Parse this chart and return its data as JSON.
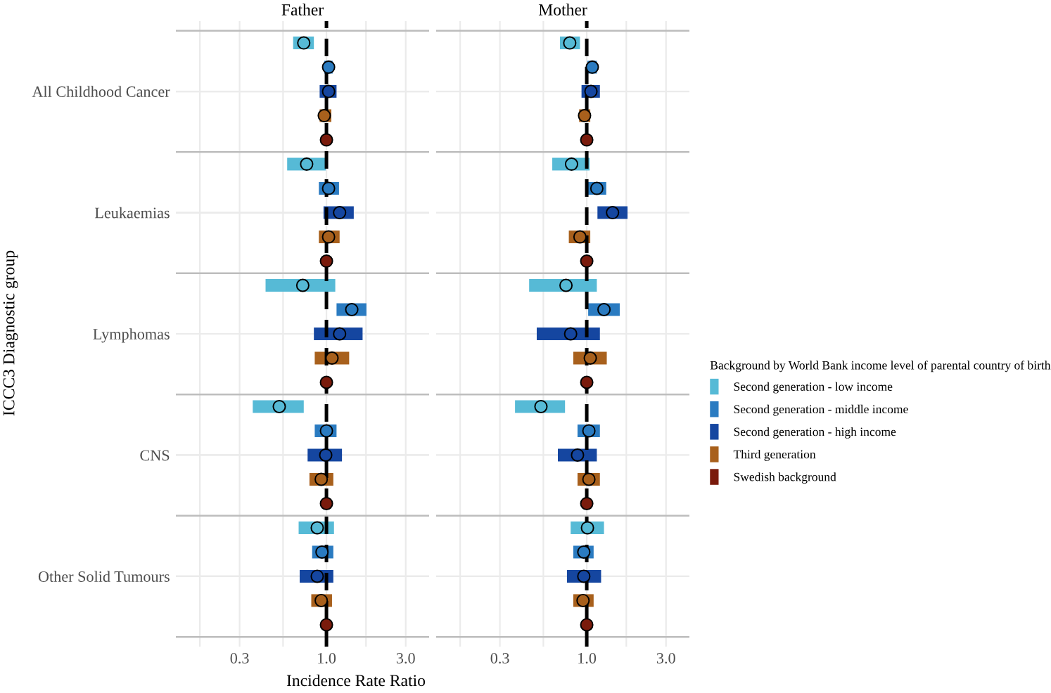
{
  "chart_data": [
    {
      "type": "scatter",
      "orientation": "horizontal",
      "title": "Father",
      "xlabel": "Incidence Rate Ratio",
      "ylabel": "ICCC3 Diagnostic group",
      "categories": [
        null,
        null,
        "All Childhood Cancer",
        null,
        null,
        null,
        null,
        "Leukaemias",
        null,
        null,
        null,
        null,
        "Lymphomas",
        null,
        null,
        null,
        null,
        "CNS",
        null,
        null,
        null,
        null,
        "Other Solid Tumours",
        null,
        null
      ],
      "log": "x",
      "xlim": [
        0.124,
        4.15
      ],
      "xticks": [
        {
          "value": 0.173,
          "label": null
        },
        0.3,
        {
          "value": 0.548,
          "label": null
        },
        {
          "value": 1,
          "label": "1.0"
        },
        {
          "value": 1.73,
          "label": null
        },
        {
          "value": 3,
          "label": "3.0"
        }
      ],
      "grid": true,
      "marker": "circle",
      "legend": "right",
      "legend_title": "Background by World Bank income level of parental country of birth",
      "ref_lines": [
        {
          "axis": "x",
          "value": 1,
          "color": "#000000",
          "line_style": "dashed"
        }
      ],
      "series": [
        {
          "name": "Second generation - low income",
          "color": "#56bad6",
          "values": [
            0.73,
            null,
            null,
            null,
            null,
            0.76,
            null,
            null,
            null,
            null,
            0.72,
            null,
            null,
            null,
            null,
            0.52,
            null,
            null,
            null,
            null,
            0.88,
            null,
            null,
            null,
            null
          ],
          "errors": [
            [
              0.63,
              0.84
            ],
            null,
            null,
            null,
            null,
            [
              0.58,
              0.99
            ],
            null,
            null,
            null,
            null,
            [
              0.43,
              1.13
            ],
            null,
            null,
            null,
            null,
            [
              0.36,
              0.73
            ],
            null,
            null,
            null,
            null,
            [
              0.68,
              1.11
            ],
            null,
            null,
            null,
            null
          ]
        },
        {
          "name": "Second generation - middle income",
          "color": "#2a7bc1",
          "values": [
            null,
            1.03,
            null,
            null,
            null,
            null,
            1.03,
            null,
            null,
            null,
            null,
            1.42,
            null,
            null,
            null,
            null,
            1.0,
            null,
            null,
            null,
            null,
            0.94,
            null,
            null,
            null
          ],
          "errors": [
            null,
            [
              0.97,
              1.09
            ],
            null,
            null,
            null,
            null,
            [
              0.9,
              1.19
            ],
            null,
            null,
            null,
            null,
            [
              1.15,
              1.74
            ],
            null,
            null,
            null,
            null,
            [
              0.85,
              1.15
            ],
            null,
            null,
            null,
            null,
            [
              0.82,
              1.1
            ],
            null,
            null,
            null
          ]
        },
        {
          "name": "Second generation - high income",
          "color": "#1546a0",
          "values": [
            null,
            null,
            1.03,
            null,
            null,
            null,
            null,
            1.2,
            null,
            null,
            null,
            null,
            1.2,
            null,
            null,
            null,
            null,
            0.99,
            null,
            null,
            null,
            null,
            0.88,
            null,
            null
          ],
          "errors": [
            null,
            null,
            [
              0.91,
              1.15
            ],
            null,
            null,
            null,
            null,
            [
              0.96,
              1.46
            ],
            null,
            null,
            null,
            null,
            [
              0.84,
              1.65
            ],
            null,
            null,
            null,
            null,
            [
              0.77,
              1.24
            ],
            null,
            null,
            null,
            null,
            [
              0.69,
              1.1
            ],
            null,
            null
          ]
        },
        {
          "name": "Third generation",
          "color": "#a8601c",
          "values": [
            null,
            null,
            null,
            0.97,
            null,
            null,
            null,
            null,
            1.03,
            null,
            null,
            null,
            null,
            1.08,
            null,
            null,
            null,
            null,
            0.93,
            null,
            null,
            null,
            null,
            0.93,
            null
          ],
          "errors": [
            null,
            null,
            null,
            [
              0.91,
              1.07
            ],
            null,
            null,
            null,
            null,
            [
              0.9,
              1.2
            ],
            null,
            null,
            null,
            null,
            [
              0.85,
              1.37
            ],
            null,
            null,
            null,
            null,
            [
              0.79,
              1.1
            ],
            null,
            null,
            null,
            null,
            [
              0.81,
              1.08
            ],
            null
          ]
        },
        {
          "name": "Swedish background",
          "color": "#7a1b0c",
          "values": [
            null,
            null,
            null,
            null,
            1,
            null,
            null,
            null,
            null,
            1,
            null,
            null,
            null,
            null,
            1,
            null,
            null,
            null,
            null,
            1,
            null,
            null,
            null,
            null,
            1
          ]
        }
      ]
    },
    {
      "type": "scatter",
      "orientation": "horizontal",
      "title": "Mother",
      "tick_labels": "x",
      "categories": [
        null,
        null,
        null,
        null,
        null,
        null,
        null,
        null,
        null,
        null,
        null,
        null,
        null,
        null,
        null,
        null,
        null,
        null,
        null,
        null,
        null,
        null,
        null,
        null,
        null
      ],
      "log": "x",
      "xlim": [
        0.124,
        4.15
      ],
      "xticks": [
        {
          "value": 0.173,
          "label": null
        },
        0.3,
        {
          "value": 0.548,
          "label": null
        },
        {
          "value": 1,
          "label": "1.0"
        },
        {
          "value": 1.73,
          "label": null
        },
        {
          "value": 3,
          "label": "3.0"
        }
      ],
      "grid": true,
      "marker": "circle",
      "ref_lines": [
        {
          "axis": "x",
          "value": 1,
          "color": "#000000",
          "line_style": "dashed"
        }
      ],
      "series": [
        {
          "color": "#56bad6",
          "values": [
            0.79,
            null,
            null,
            null,
            null,
            0.81,
            null,
            null,
            null,
            null,
            0.75,
            null,
            null,
            null,
            null,
            0.53,
            null,
            null,
            null,
            null,
            1.01,
            null,
            null,
            null,
            null
          ],
          "errors": [
            [
              0.69,
              0.91
            ],
            null,
            null,
            null,
            null,
            [
              0.62,
              1.04
            ],
            null,
            null,
            null,
            null,
            [
              0.45,
              1.15
            ],
            null,
            null,
            null,
            null,
            [
              0.37,
              0.74
            ],
            null,
            null,
            null,
            null,
            [
              0.8,
              1.27
            ],
            null,
            null,
            null,
            null
          ]
        },
        {
          "color": "#2a7bc1",
          "values": [
            null,
            1.08,
            null,
            null,
            null,
            null,
            1.15,
            null,
            null,
            null,
            null,
            1.27,
            null,
            null,
            null,
            null,
            1.03,
            null,
            null,
            null,
            null,
            0.96,
            null,
            null,
            null
          ],
          "errors": [
            null,
            [
              1.01,
              1.15
            ],
            null,
            null,
            null,
            null,
            [
              1.0,
              1.31
            ],
            null,
            null,
            null,
            null,
            [
              1.02,
              1.58
            ],
            null,
            null,
            null,
            null,
            [
              0.88,
              1.2
            ],
            null,
            null,
            null,
            null,
            [
              0.83,
              1.1
            ],
            null,
            null,
            null
          ]
        },
        {
          "color": "#1546a0",
          "values": [
            null,
            null,
            1.06,
            null,
            null,
            null,
            null,
            1.43,
            null,
            null,
            null,
            null,
            0.8,
            null,
            null,
            null,
            null,
            0.88,
            null,
            null,
            null,
            null,
            0.96,
            null,
            null
          ],
          "errors": [
            null,
            null,
            [
              0.93,
              1.2
            ],
            null,
            null,
            null,
            null,
            [
              1.16,
              1.76
            ],
            null,
            null,
            null,
            null,
            [
              0.5,
              1.2
            ],
            null,
            null,
            null,
            null,
            [
              0.67,
              1.15
            ],
            null,
            null,
            null,
            null,
            [
              0.76,
              1.22
            ],
            null,
            null
          ]
        },
        {
          "color": "#a8601c",
          "values": [
            null,
            null,
            null,
            0.97,
            null,
            null,
            null,
            null,
            0.91,
            null,
            null,
            null,
            null,
            1.05,
            null,
            null,
            null,
            null,
            1.03,
            null,
            null,
            null,
            null,
            0.95,
            null
          ],
          "errors": [
            null,
            null,
            null,
            [
              0.9,
              1.05
            ],
            null,
            null,
            null,
            null,
            [
              0.78,
              1.05
            ],
            null,
            null,
            null,
            null,
            [
              0.83,
              1.32
            ],
            null,
            null,
            null,
            null,
            [
              0.88,
              1.2
            ],
            null,
            null,
            null,
            null,
            [
              0.83,
              1.1
            ],
            null
          ]
        },
        {
          "color": "#7a1b0c",
          "values": [
            null,
            null,
            null,
            null,
            1,
            null,
            null,
            null,
            null,
            1,
            null,
            null,
            null,
            null,
            1,
            null,
            null,
            null,
            null,
            1,
            null,
            null,
            null,
            null,
            1
          ]
        }
      ]
    }
  ]
}
